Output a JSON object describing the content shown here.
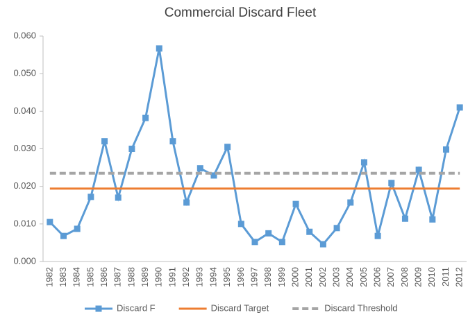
{
  "chart_data": {
    "type": "line",
    "title": "Commercial Discard Fleet",
    "categories": [
      "1982",
      "1983",
      "1984",
      "1985",
      "1986",
      "1987",
      "1988",
      "1989",
      "1990",
      "1991",
      "1992",
      "1993",
      "1994",
      "1995",
      "1996",
      "1997",
      "1998",
      "1999",
      "2000",
      "2001",
      "2002",
      "2003",
      "2004",
      "2005",
      "2006",
      "2007",
      "2008",
      "2009",
      "2010",
      "2011",
      "2012"
    ],
    "series": [
      {
        "name": "Discard F",
        "color": "#5b9bd5",
        "style": "solid",
        "marker": "square",
        "values": [
          0.0105,
          0.0068,
          0.0087,
          0.0172,
          0.032,
          0.017,
          0.03,
          0.0382,
          0.0567,
          0.032,
          0.0157,
          0.0248,
          0.0229,
          0.0305,
          0.01,
          0.0052,
          0.0075,
          0.0052,
          0.0153,
          0.0079,
          0.0046,
          0.0089,
          0.0157,
          0.0264,
          0.0068,
          0.0209,
          0.0114,
          0.0244,
          0.0112,
          0.0298,
          0.041
        ]
      },
      {
        "name": "Discard Target",
        "color": "#ed7d31",
        "style": "solid",
        "values": [
          0.0194,
          0.0194,
          0.0194,
          0.0194,
          0.0194,
          0.0194,
          0.0194,
          0.0194,
          0.0194,
          0.0194,
          0.0194,
          0.0194,
          0.0194,
          0.0194,
          0.0194,
          0.0194,
          0.0194,
          0.0194,
          0.0194,
          0.0194,
          0.0194,
          0.0194,
          0.0194,
          0.0194,
          0.0194,
          0.0194,
          0.0194,
          0.0194,
          0.0194,
          0.0194,
          0.0194
        ]
      },
      {
        "name": "Discard Threshold",
        "color": "#a5a5a5",
        "style": "dashed",
        "values": [
          0.0235,
          0.0235,
          0.0235,
          0.0235,
          0.0235,
          0.0235,
          0.0235,
          0.0235,
          0.0235,
          0.0235,
          0.0235,
          0.0235,
          0.0235,
          0.0235,
          0.0235,
          0.0235,
          0.0235,
          0.0235,
          0.0235,
          0.0235,
          0.0235,
          0.0235,
          0.0235,
          0.0235,
          0.0235,
          0.0235,
          0.0235,
          0.0235,
          0.0235,
          0.0235,
          0.0235
        ]
      }
    ],
    "ylim": [
      0,
      0.06
    ],
    "yticks": [
      {
        "value": 0,
        "label": "0.000"
      },
      {
        "value": 0.01,
        "label": "0.010"
      },
      {
        "value": 0.02,
        "label": "0.020"
      },
      {
        "value": 0.03,
        "label": "0.030"
      },
      {
        "value": 0.04,
        "label": "0.040"
      },
      {
        "value": 0.05,
        "label": "0.050"
      },
      {
        "value": 0.06,
        "label": "0.060"
      }
    ],
    "grid": false,
    "legend": "bottom"
  }
}
